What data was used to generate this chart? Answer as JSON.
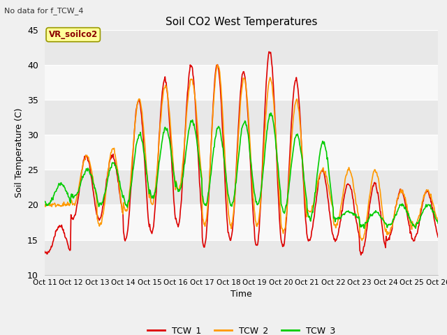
{
  "title": "Soil CO2 West Temperatures",
  "subtitle": "No data for f_TCW_4",
  "xlabel": "Time",
  "ylabel": "Soil Temperature (C)",
  "ylim": [
    10,
    45
  ],
  "xlim": [
    0,
    15
  ],
  "annotation": "VR_soilco2",
  "fig_bg_color": "#f0f0f0",
  "plot_bg_color": "#ffffff",
  "band_colors": [
    "#e8e8e8",
    "#f8f8f8"
  ],
  "grid_color": "#cccccc",
  "xtick_labels": [
    "Oct 11",
    "Oct 12",
    "Oct 13",
    "Oct 14",
    "Oct 15",
    "Oct 16",
    "Oct 17",
    "Oct 18",
    "Oct 19",
    "Oct 20",
    "Oct 21",
    "Oct 22",
    "Oct 23",
    "Oct 24",
    "Oct 25",
    "Oct 26"
  ],
  "legend_entries": [
    "TCW_1",
    "TCW_2",
    "TCW_3"
  ],
  "line_colors": [
    "#dd0000",
    "#ff9900",
    "#00cc00"
  ],
  "line_width": 1.2,
  "yticks": [
    10,
    15,
    20,
    25,
    30,
    35,
    40,
    45
  ]
}
